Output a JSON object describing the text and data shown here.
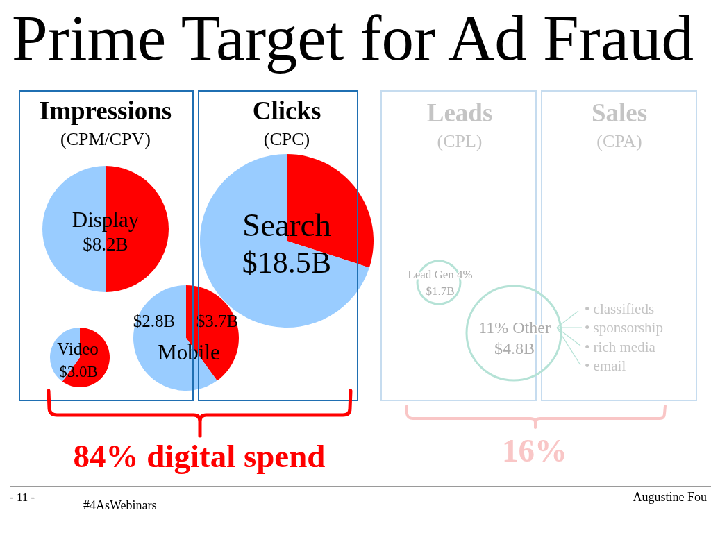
{
  "chart_data": [
    {
      "type": "other",
      "title": "Prime Target for Ad Fraud",
      "annotations": [
        "Impressions",
        "(CPM/CPV)",
        "Clicks",
        "(CPC)",
        "Leads",
        "(CPL)",
        "Sales",
        "(CPA)",
        "Lead Gen 4%",
        "$1.7B",
        "11% Other",
        "$4.8B",
        "• classifieds",
        "• sponsorship",
        "• rich media",
        "• email",
        "84% digital spend",
        "16%",
        "- 11 -",
        "#4AsWebinars",
        "Augustine Fou"
      ]
    },
    {
      "type": "pie",
      "title": "Display",
      "annotations": [
        "$8.2B"
      ],
      "categories": [
        null,
        null
      ],
      "values": [
        50,
        50
      ],
      "colors": [
        "#ff0000",
        "#99ccff"
      ]
    },
    {
      "type": "pie",
      "title": "Video",
      "annotations": [
        "$3.0B"
      ],
      "categories": [
        null,
        null
      ],
      "values": [
        60,
        40
      ],
      "colors": [
        "#ff0000",
        "#99ccff"
      ]
    },
    {
      "type": "pie",
      "title": "Mobile",
      "annotations": [
        "$2.8B",
        "$3.7B"
      ],
      "categories": [
        null,
        null
      ],
      "values": [
        40,
        60
      ],
      "colors": [
        "#ff0000",
        "#99ccff"
      ]
    },
    {
      "type": "pie",
      "title": "Search",
      "annotations": [
        "$18.5B"
      ],
      "categories": [
        null,
        null
      ],
      "values": [
        30,
        70
      ],
      "colors": [
        "#ff0000",
        "#99ccff"
      ]
    }
  ]
}
